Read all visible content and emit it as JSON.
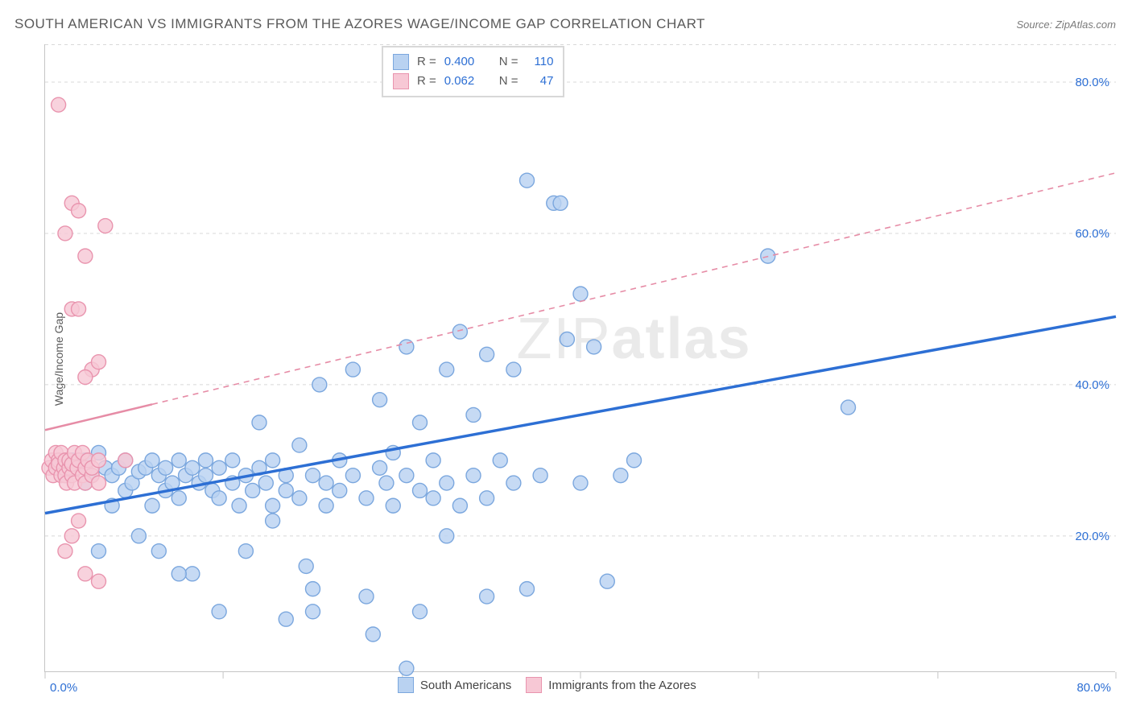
{
  "header": {
    "title": "SOUTH AMERICAN VS IMMIGRANTS FROM THE AZORES WAGE/INCOME GAP CORRELATION CHART",
    "source_prefix": "Source: ",
    "source_name": "ZipAtlas.com"
  },
  "chart": {
    "type": "scatter",
    "ylabel": "Wage/Income Gap",
    "background_color": "#ffffff",
    "grid_color": "#d8d8d8",
    "axis_color": "#c5c5c5",
    "watermark": {
      "light": "ZIP",
      "bold": "atlas",
      "color": "rgba(150,150,150,0.20)",
      "fontsize": 72
    },
    "xlim": [
      0,
      80
    ],
    "ylim": [
      2,
      85
    ],
    "x_ticks": [
      0,
      13.3,
      26.7,
      40,
      53.3,
      66.7,
      80
    ],
    "x_tick_labels_shown": {
      "0": "0.0%",
      "80": "80.0%"
    },
    "y_ticks": [
      20,
      40,
      60,
      80
    ],
    "y_tick_labels": [
      "20.0%",
      "40.0%",
      "60.0%",
      "80.0%"
    ],
    "tick_label_color": "#2d6fd4",
    "tick_label_fontsize": 15,
    "series": [
      {
        "name": "South Americans",
        "marker_fill": "#b9d2f1",
        "marker_stroke": "#7ba7de",
        "marker_radius": 9,
        "marker_opacity": 0.82,
        "points": [
          [
            1,
            29
          ],
          [
            1.5,
            28
          ],
          [
            2,
            30
          ],
          [
            2.5,
            29.5
          ],
          [
            3,
            30
          ],
          [
            3,
            27
          ],
          [
            3.5,
            28
          ],
          [
            4,
            31
          ],
          [
            4,
            18
          ],
          [
            4.5,
            29
          ],
          [
            5,
            28
          ],
          [
            5,
            24
          ],
          [
            5.5,
            29
          ],
          [
            6,
            30
          ],
          [
            6,
            26
          ],
          [
            6.5,
            27
          ],
          [
            7,
            28.5
          ],
          [
            7,
            20
          ],
          [
            7.5,
            29
          ],
          [
            8,
            30
          ],
          [
            8,
            24
          ],
          [
            8.5,
            28
          ],
          [
            9,
            29
          ],
          [
            9,
            26
          ],
          [
            9.5,
            27
          ],
          [
            10,
            30
          ],
          [
            10,
            25
          ],
          [
            10.5,
            28
          ],
          [
            11,
            29
          ],
          [
            11,
            15
          ],
          [
            11.5,
            27
          ],
          [
            12,
            30
          ],
          [
            12,
            28
          ],
          [
            12.5,
            26
          ],
          [
            13,
            29
          ],
          [
            13,
            25
          ],
          [
            14,
            27
          ],
          [
            14,
            30
          ],
          [
            14.5,
            24
          ],
          [
            15,
            28
          ],
          [
            15,
            18
          ],
          [
            15.5,
            26
          ],
          [
            16,
            29
          ],
          [
            16,
            35
          ],
          [
            16.5,
            27
          ],
          [
            17,
            24
          ],
          [
            17,
            30
          ],
          [
            18,
            28
          ],
          [
            18,
            26
          ],
          [
            19,
            25
          ],
          [
            19,
            32
          ],
          [
            20,
            28
          ],
          [
            20,
            10
          ],
          [
            20.5,
            40
          ],
          [
            21,
            27
          ],
          [
            21,
            24
          ],
          [
            22,
            30
          ],
          [
            22,
            26
          ],
          [
            23,
            28
          ],
          [
            23,
            42
          ],
          [
            24,
            25
          ],
          [
            24,
            12
          ],
          [
            25,
            29
          ],
          [
            25,
            38
          ],
          [
            25.5,
            27
          ],
          [
            26,
            31
          ],
          [
            26,
            24
          ],
          [
            27,
            45
          ],
          [
            27,
            28
          ],
          [
            28,
            26
          ],
          [
            28,
            35
          ],
          [
            28,
            10
          ],
          [
            29,
            30
          ],
          [
            29,
            25
          ],
          [
            30,
            42
          ],
          [
            30,
            27
          ],
          [
            31,
            24
          ],
          [
            31,
            47
          ],
          [
            32,
            28
          ],
          [
            32,
            36
          ],
          [
            33,
            44
          ],
          [
            33,
            25
          ],
          [
            33,
            12
          ],
          [
            34,
            30
          ],
          [
            35,
            27
          ],
          [
            35,
            42
          ],
          [
            36,
            67
          ],
          [
            37,
            28
          ],
          [
            38,
            64
          ],
          [
            38.5,
            64
          ],
          [
            39,
            46
          ],
          [
            40,
            27
          ],
          [
            40,
            52
          ],
          [
            41,
            45
          ],
          [
            42,
            14
          ],
          [
            43,
            28
          ],
          [
            44,
            30
          ],
          [
            54,
            57
          ],
          [
            60,
            37
          ],
          [
            18,
            9
          ],
          [
            13,
            10
          ],
          [
            24.5,
            7
          ],
          [
            36,
            13
          ],
          [
            20,
            13
          ],
          [
            10,
            15
          ],
          [
            27,
            2.5
          ],
          [
            30,
            20
          ],
          [
            17,
            22
          ],
          [
            19.5,
            16
          ],
          [
            8.5,
            18
          ]
        ]
      },
      {
        "name": "Immigrants from the Azores",
        "marker_fill": "#f7c8d5",
        "marker_stroke": "#e994ae",
        "marker_radius": 9,
        "marker_opacity": 0.82,
        "points": [
          [
            0.3,
            29
          ],
          [
            0.5,
            30
          ],
          [
            0.6,
            28
          ],
          [
            0.8,
            31
          ],
          [
            0.8,
            29
          ],
          [
            1,
            30
          ],
          [
            1,
            29.5
          ],
          [
            1.2,
            28
          ],
          [
            1.2,
            31
          ],
          [
            1.4,
            29
          ],
          [
            1.5,
            30
          ],
          [
            1.5,
            28
          ],
          [
            1.6,
            27
          ],
          [
            1.8,
            29
          ],
          [
            1.8,
            30
          ],
          [
            2,
            28
          ],
          [
            2,
            29.5
          ],
          [
            2.2,
            31
          ],
          [
            2.2,
            27
          ],
          [
            2.4,
            29
          ],
          [
            2.5,
            30
          ],
          [
            2.8,
            28
          ],
          [
            2.8,
            31
          ],
          [
            3,
            29
          ],
          [
            3,
            27
          ],
          [
            3.2,
            30
          ],
          [
            3.5,
            28
          ],
          [
            3.5,
            29
          ],
          [
            4,
            30
          ],
          [
            4,
            27
          ],
          [
            1,
            77
          ],
          [
            2,
            64
          ],
          [
            2.5,
            63
          ],
          [
            1.5,
            60
          ],
          [
            3,
            57
          ],
          [
            4.5,
            61
          ],
          [
            2,
            50
          ],
          [
            2.5,
            50
          ],
          [
            3.5,
            42
          ],
          [
            3,
            41
          ],
          [
            4,
            43
          ],
          [
            2,
            20
          ],
          [
            2.5,
            22
          ],
          [
            3,
            15
          ],
          [
            4,
            14
          ],
          [
            1.5,
            18
          ],
          [
            6,
            30
          ]
        ]
      }
    ],
    "trend_lines": [
      {
        "series": "South Americans",
        "color": "#2d6fd4",
        "width": 3.5,
        "solid_from_x": 0,
        "solid_to_x": 80,
        "y_at_x0": 23,
        "y_at_x80": 49
      },
      {
        "series": "Immigrants from the Azores",
        "color": "#e68ca6",
        "width": 2.5,
        "solid_from_x": 0,
        "solid_to_x": 8,
        "dashed_from_x": 8,
        "dashed_to_x": 80,
        "y_at_x0": 34,
        "y_at_x80": 68
      }
    ],
    "legend_top": {
      "border_color": "#d8d8d8",
      "rows": [
        {
          "swatch_fill": "#b9d2f1",
          "swatch_stroke": "#7ba7de",
          "r_label": "R =",
          "r_value": "0.400",
          "n_label": "N =",
          "n_value": "110"
        },
        {
          "swatch_fill": "#f7c8d5",
          "swatch_stroke": "#e994ae",
          "r_label": "R =",
          "r_value": "0.062",
          "n_label": "N =",
          "n_value": "47"
        }
      ],
      "label_color": "#5a5a5a",
      "value_color": "#2d6fd4"
    },
    "legend_bottom": {
      "items": [
        {
          "swatch_fill": "#b9d2f1",
          "swatch_stroke": "#7ba7de",
          "label": "South Americans"
        },
        {
          "swatch_fill": "#f7c8d5",
          "swatch_stroke": "#e994ae",
          "label": "Immigrants from the Azores"
        }
      ]
    }
  }
}
